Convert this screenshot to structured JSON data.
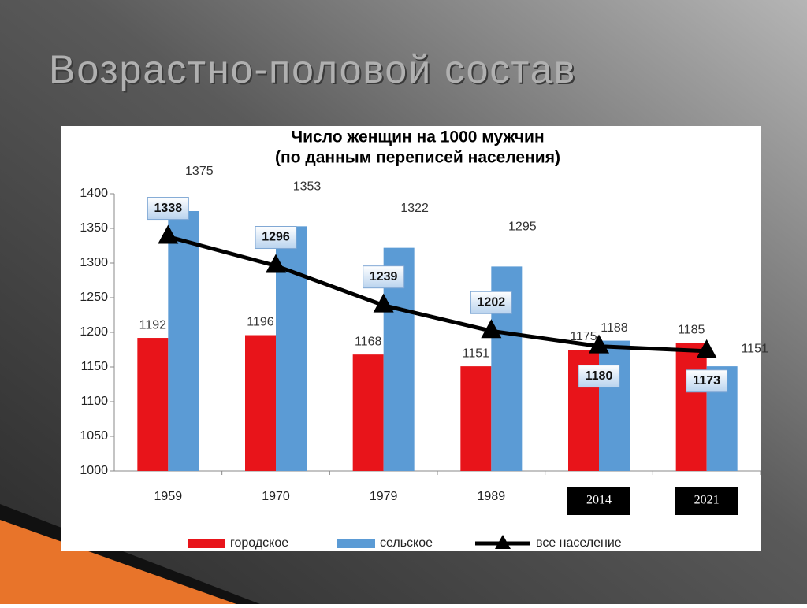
{
  "title": "Возрастно-половой состав",
  "chart_data": {
    "type": "bar",
    "title": "Число женщин на 1000 мужчин",
    "subtitle": "(по данным переписей населения)",
    "categories": [
      "1959",
      "1970",
      "1979",
      "1989",
      "2014",
      "2021"
    ],
    "series": [
      {
        "name": "городское",
        "type": "bar",
        "color": "#e8141a",
        "values": [
          1192,
          1196,
          1168,
          1151,
          1175,
          1185
        ]
      },
      {
        "name": "сельское",
        "type": "bar",
        "color": "#5b9bd5",
        "values": [
          1375,
          1353,
          1322,
          1295,
          1188,
          1151
        ]
      },
      {
        "name": "все население",
        "type": "line",
        "color": "#000000",
        "values": [
          1338,
          1296,
          1239,
          1202,
          1180,
          1173
        ]
      }
    ],
    "ylim": [
      1000,
      1400
    ],
    "yticks": [
      1000,
      1050,
      1100,
      1150,
      1200,
      1250,
      1300,
      1350,
      1400
    ],
    "grid": false,
    "legend": "bottom"
  }
}
